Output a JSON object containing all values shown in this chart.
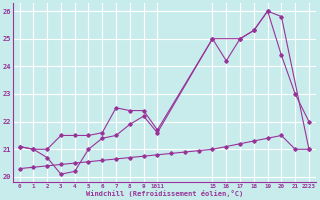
{
  "xlabel": "Windchill (Refroidissement éolien,°C)",
  "bg_color": "#c8ecec",
  "grid_color": "#ffffff",
  "line_color": "#993399",
  "ylim": [
    19.8,
    26.3
  ],
  "yticks": [
    20,
    21,
    22,
    23,
    24,
    25,
    26
  ],
  "x_labels": [
    "0",
    "1",
    "2",
    "3",
    "4",
    "5",
    "6",
    "7",
    "8",
    "9",
    "1011",
    "",
    "",
    "",
    "15",
    "16",
    "17",
    "18",
    "19",
    "20",
    "21",
    "2223"
  ],
  "n_points": 22,
  "series": [
    {
      "indices": [
        0,
        1,
        2,
        3,
        4,
        5,
        6,
        7,
        8,
        9,
        10,
        14,
        16,
        17,
        18,
        19,
        21
      ],
      "y": [
        21.1,
        21.0,
        20.7,
        20.1,
        20.2,
        21.0,
        21.4,
        21.5,
        21.9,
        22.2,
        21.6,
        25.0,
        25.0,
        25.3,
        26.0,
        25.8,
        21.0
      ]
    },
    {
      "indices": [
        0,
        1,
        2,
        3,
        4,
        5,
        6,
        7,
        8,
        9,
        10,
        14,
        15,
        16,
        17,
        18,
        19,
        20,
        21
      ],
      "y": [
        21.1,
        21.0,
        21.0,
        21.5,
        21.5,
        21.5,
        21.6,
        22.5,
        22.4,
        22.4,
        21.7,
        25.0,
        24.2,
        25.0,
        25.3,
        26.0,
        24.4,
        23.0,
        22.0
      ]
    },
    {
      "indices": [
        0,
        1,
        2,
        3,
        4,
        5,
        6,
        7,
        8,
        9,
        10,
        11,
        12,
        13,
        14,
        15,
        16,
        17,
        18,
        19,
        20,
        21
      ],
      "y": [
        20.3,
        20.35,
        20.4,
        20.45,
        20.5,
        20.55,
        20.6,
        20.65,
        20.7,
        20.75,
        20.8,
        20.85,
        20.9,
        20.95,
        21.0,
        21.1,
        21.2,
        21.3,
        21.4,
        21.5,
        21.0,
        21.0
      ]
    }
  ]
}
